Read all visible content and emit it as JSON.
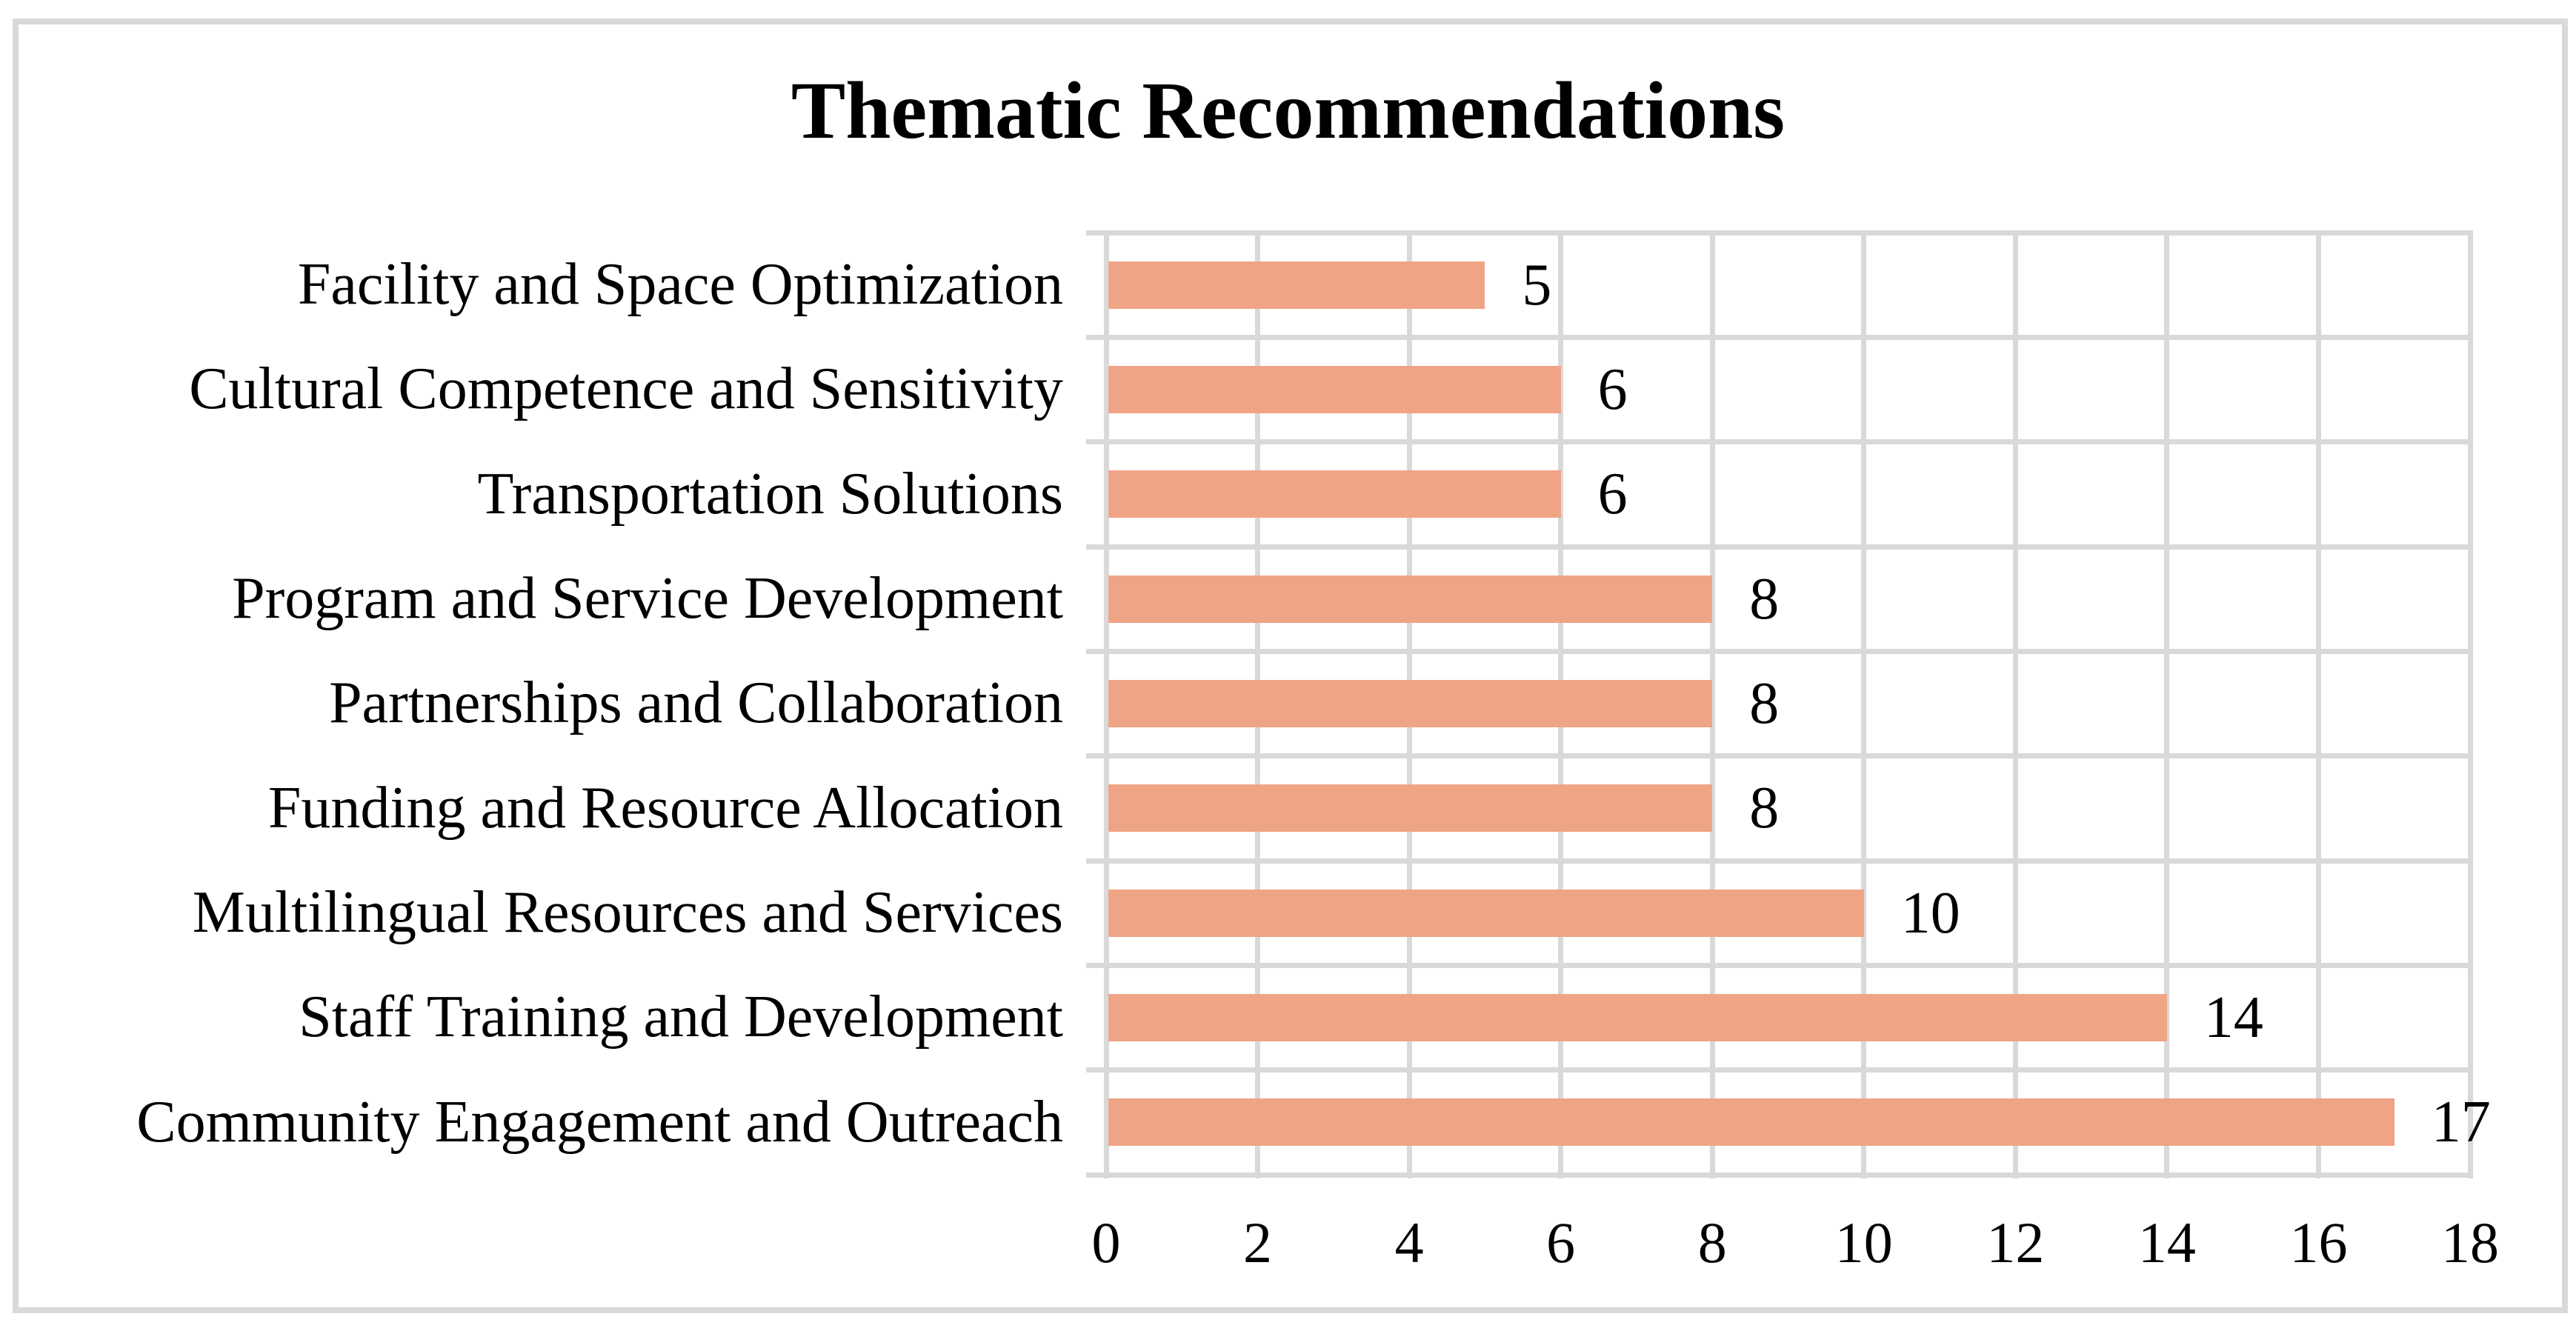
{
  "chart_data": {
    "type": "bar",
    "orientation": "horizontal",
    "title": "Thematic Recommendations",
    "categories": [
      "Facility and Space Optimization",
      "Cultural Competence and Sensitivity",
      "Transportation Solutions",
      "Program and Service Development",
      "Partnerships and Collaboration",
      "Funding and Resource Allocation",
      "Multilingual Resources and Services",
      "Staff Training and Development",
      "Community Engagement and Outreach"
    ],
    "values": [
      5,
      6,
      6,
      8,
      8,
      8,
      10,
      14,
      17
    ],
    "data_labels": [
      "5",
      "6",
      "6",
      "8",
      "8",
      "8",
      "10",
      "14",
      "17"
    ],
    "xlabel": "",
    "ylabel": "",
    "xlim": [
      0,
      18
    ],
    "x_ticks": [
      0,
      2,
      4,
      6,
      8,
      10,
      12,
      14,
      16,
      18
    ],
    "x_tick_labels": [
      "0",
      "2",
      "4",
      "6",
      "8",
      "10",
      "12",
      "14",
      "16",
      "18"
    ],
    "grid": "on",
    "legend": "none",
    "bar_color": "#F0A486",
    "gridline_color": "#D9D9D9",
    "border_color": "#D9D9D9",
    "text_color": "#000000",
    "background_color": "#FFFFFF"
  }
}
